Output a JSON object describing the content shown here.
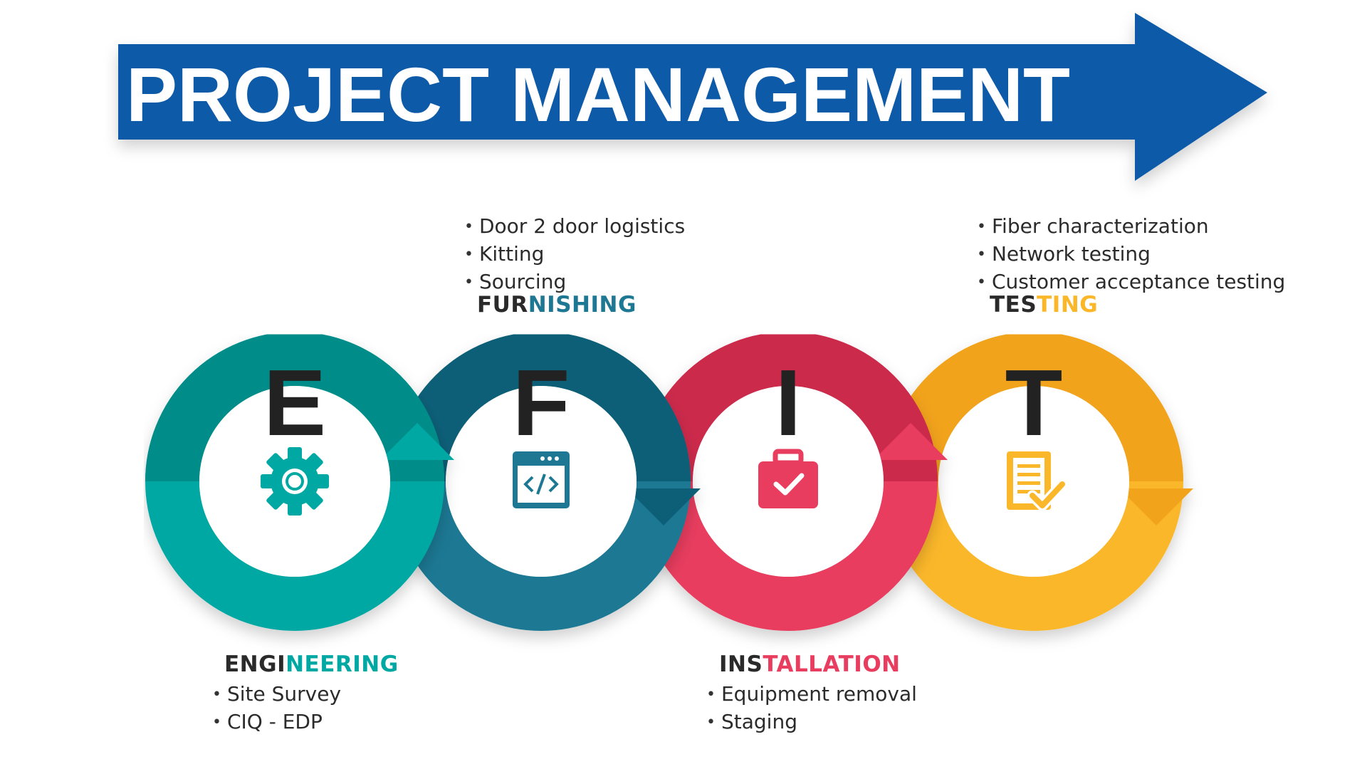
{
  "title": "PROJECT MANAGEMENT",
  "colors": {
    "title_arrow": "#0d5aa8",
    "engineering": "#00a8a4",
    "engineering_dark": "#008d89",
    "furnishing": "#1f7893",
    "furnishing_dark": "#0f5f78",
    "installation": "#e83d5e",
    "installation_dark": "#cc2a4c",
    "testing": "#fbb72a",
    "testing_dark": "#f2a31a",
    "letter": "#222222"
  },
  "stages": [
    {
      "letter": "E",
      "icon": "gear-icon",
      "label_dark": "ENGI",
      "label_color": "NEERING",
      "bullets": [
        "Site Survey",
        "CIQ - EDP"
      ]
    },
    {
      "letter": "F",
      "icon": "code-window-icon",
      "label_dark": "FUR",
      "label_color": "NISHING",
      "bullets": [
        "Door 2 door logistics",
        "Kitting",
        "Sourcing"
      ]
    },
    {
      "letter": "I",
      "icon": "briefcase-check-icon",
      "label_dark": "INS",
      "label_color": "TALLATION",
      "bullets": [
        "Equipment removal",
        "Staging"
      ]
    },
    {
      "letter": "T",
      "icon": "checklist-icon",
      "label_dark": "TES",
      "label_color": "TING",
      "bullets": [
        "Fiber characterization",
        "Network testing",
        "Customer acceptance testing"
      ]
    }
  ]
}
